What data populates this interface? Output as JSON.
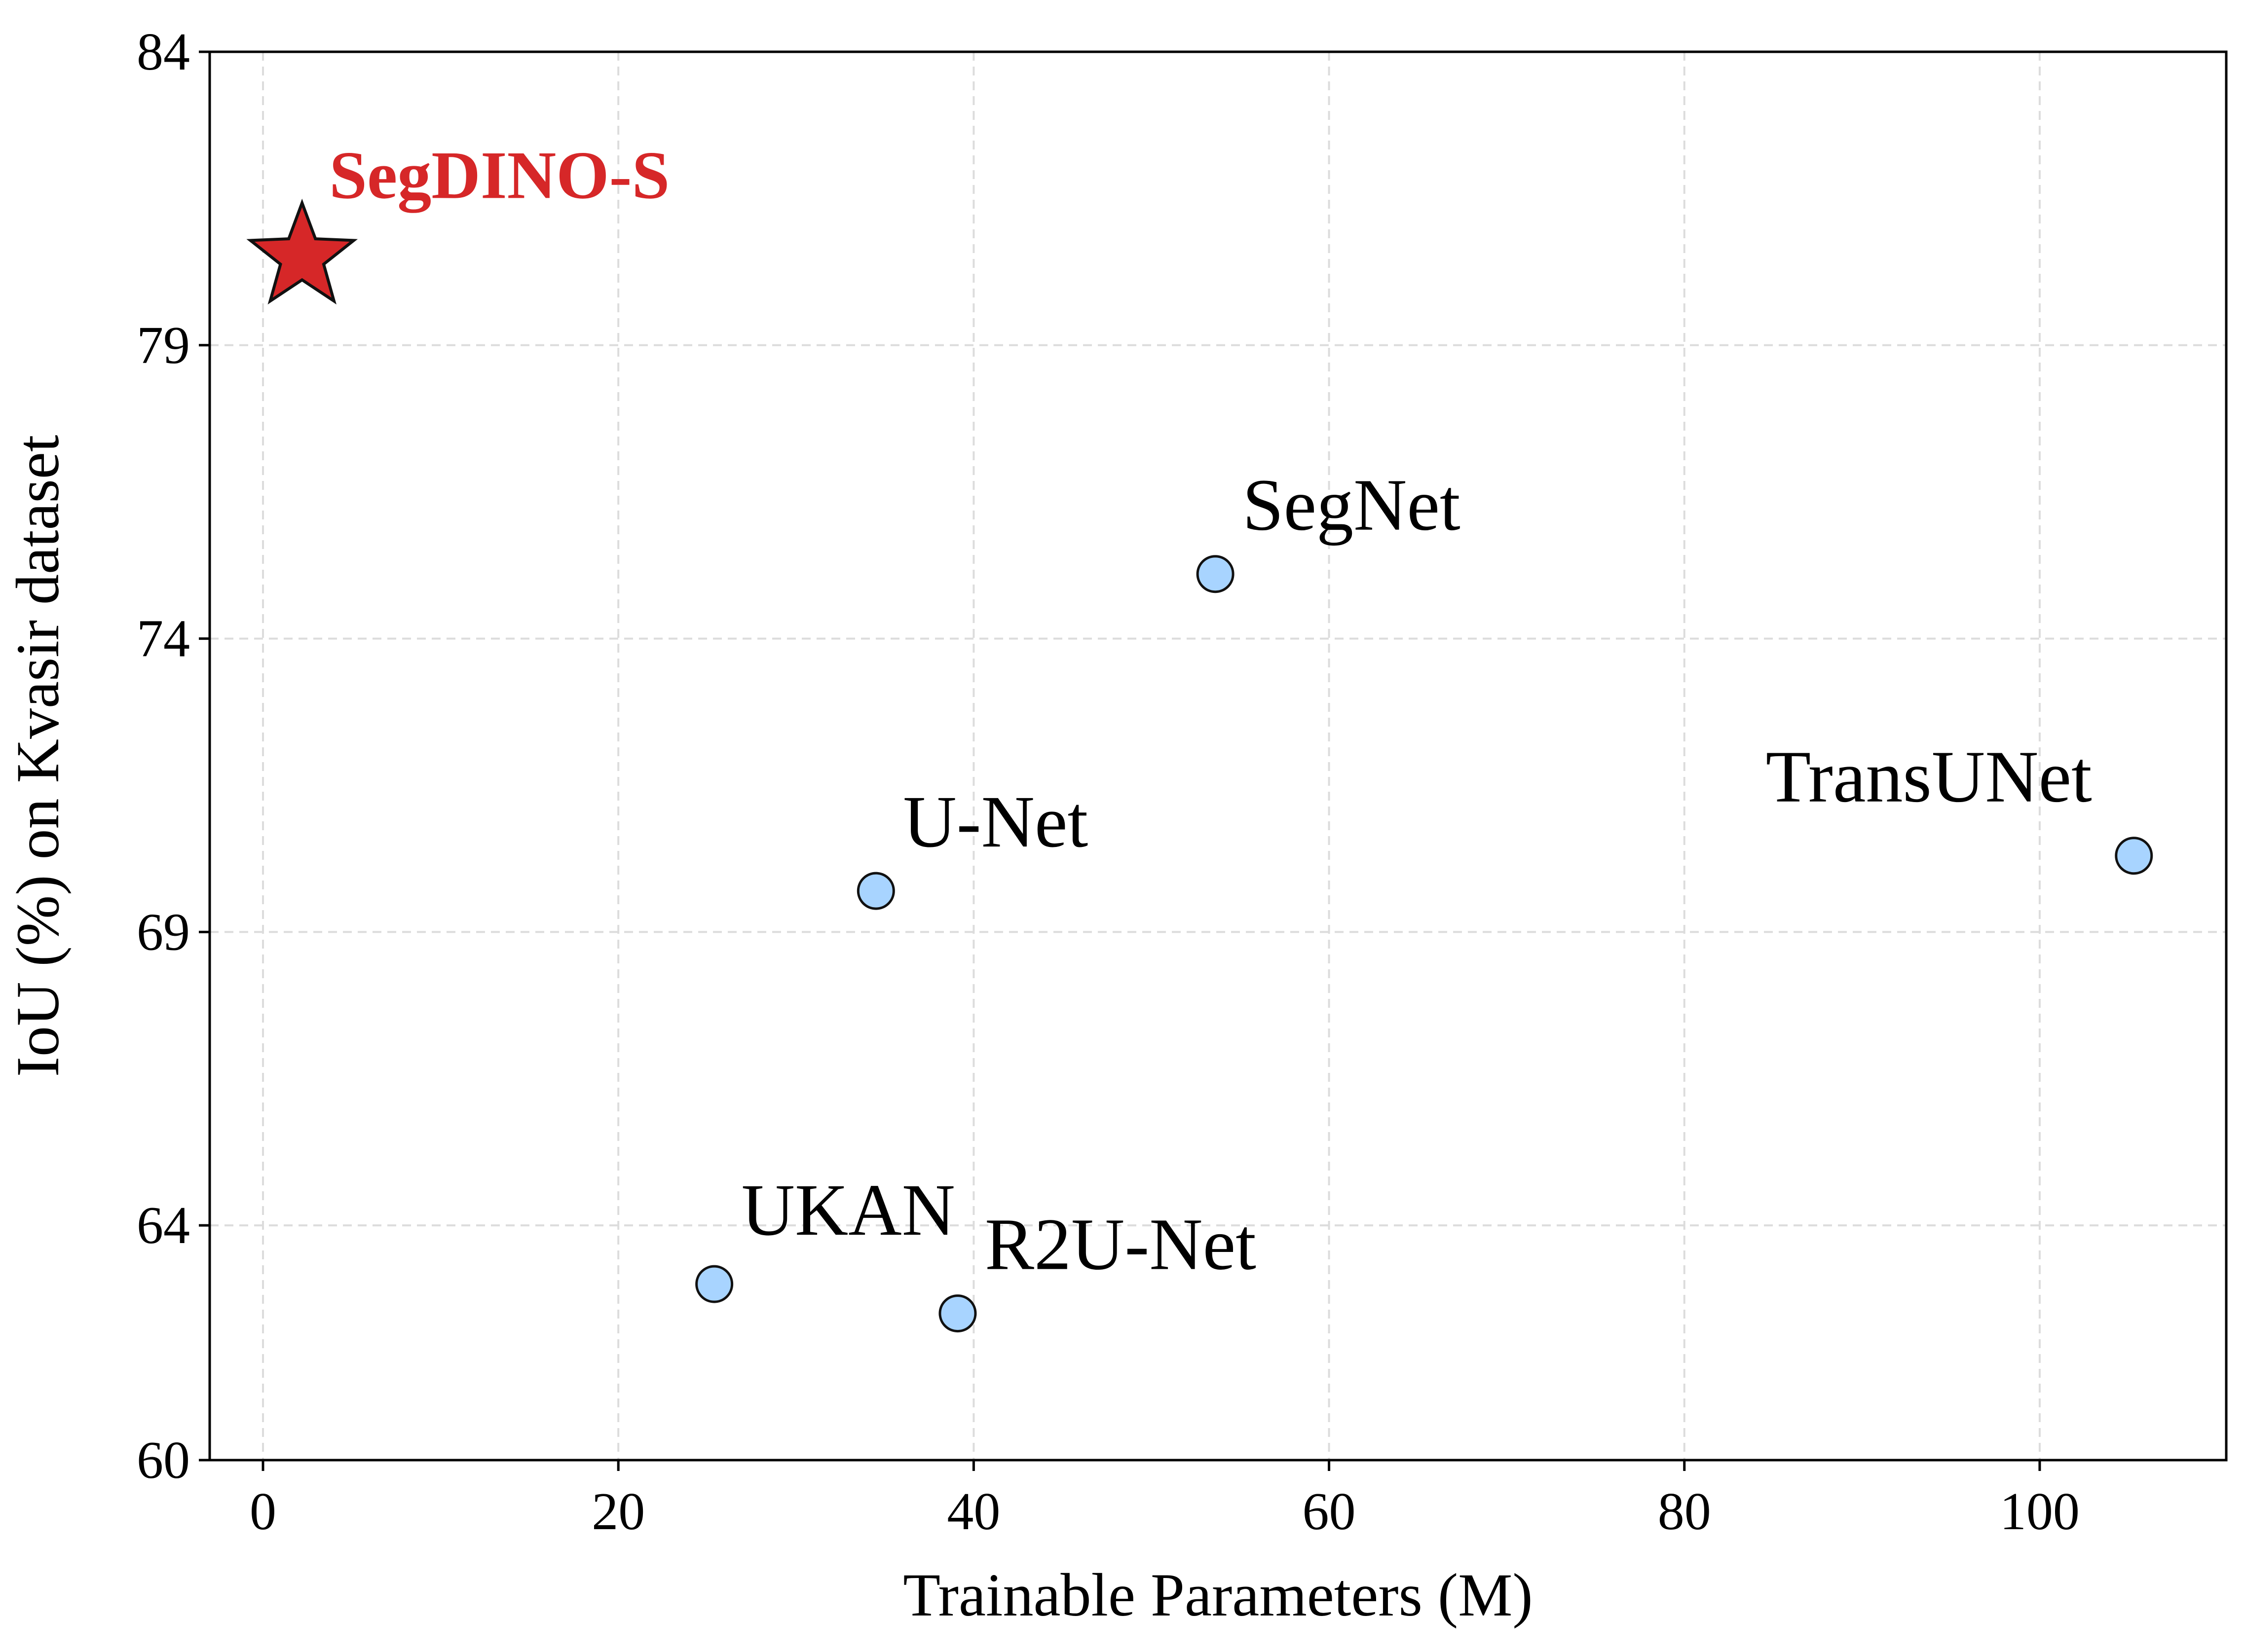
{
  "chart_data": {
    "type": "scatter",
    "title": "",
    "xlabel": "Trainable Parameters (M)",
    "ylabel": "IoU (%) on Kvasir dataset",
    "xlim": [
      -3,
      110.5
    ],
    "ylim": [
      60,
      84
    ],
    "xticks": [
      "0",
      "20",
      "40",
      "60",
      "80",
      "100"
    ],
    "xtick_values": [
      0,
      20,
      40,
      60,
      80,
      100
    ],
    "yticks": [
      "60",
      "64",
      "69",
      "74",
      "79",
      "84"
    ],
    "ytick_values": [
      60,
      64,
      69,
      74,
      79,
      84
    ],
    "grid": true,
    "points": [
      {
        "label": "SegDINO-S",
        "x": 2.2,
        "y": 80.5,
        "marker": "star",
        "color": "#d62728",
        "highlight": true
      },
      {
        "label": "SegNet",
        "x": 53.6,
        "y": 75.1,
        "marker": "circle",
        "color": "#a8d4ff"
      },
      {
        "label": "U-Net",
        "x": 34.5,
        "y": 69.7,
        "marker": "circle",
        "color": "#a8d4ff"
      },
      {
        "label": "TransUNet",
        "x": 105.3,
        "y": 70.3,
        "marker": "circle",
        "color": "#a8d4ff"
      },
      {
        "label": "UKAN",
        "x": 25.4,
        "y": 63.0,
        "marker": "circle",
        "color": "#a8d4ff"
      },
      {
        "label": "R2U-Net",
        "x": 39.1,
        "y": 62.5,
        "marker": "circle",
        "color": "#a8d4ff"
      }
    ]
  }
}
